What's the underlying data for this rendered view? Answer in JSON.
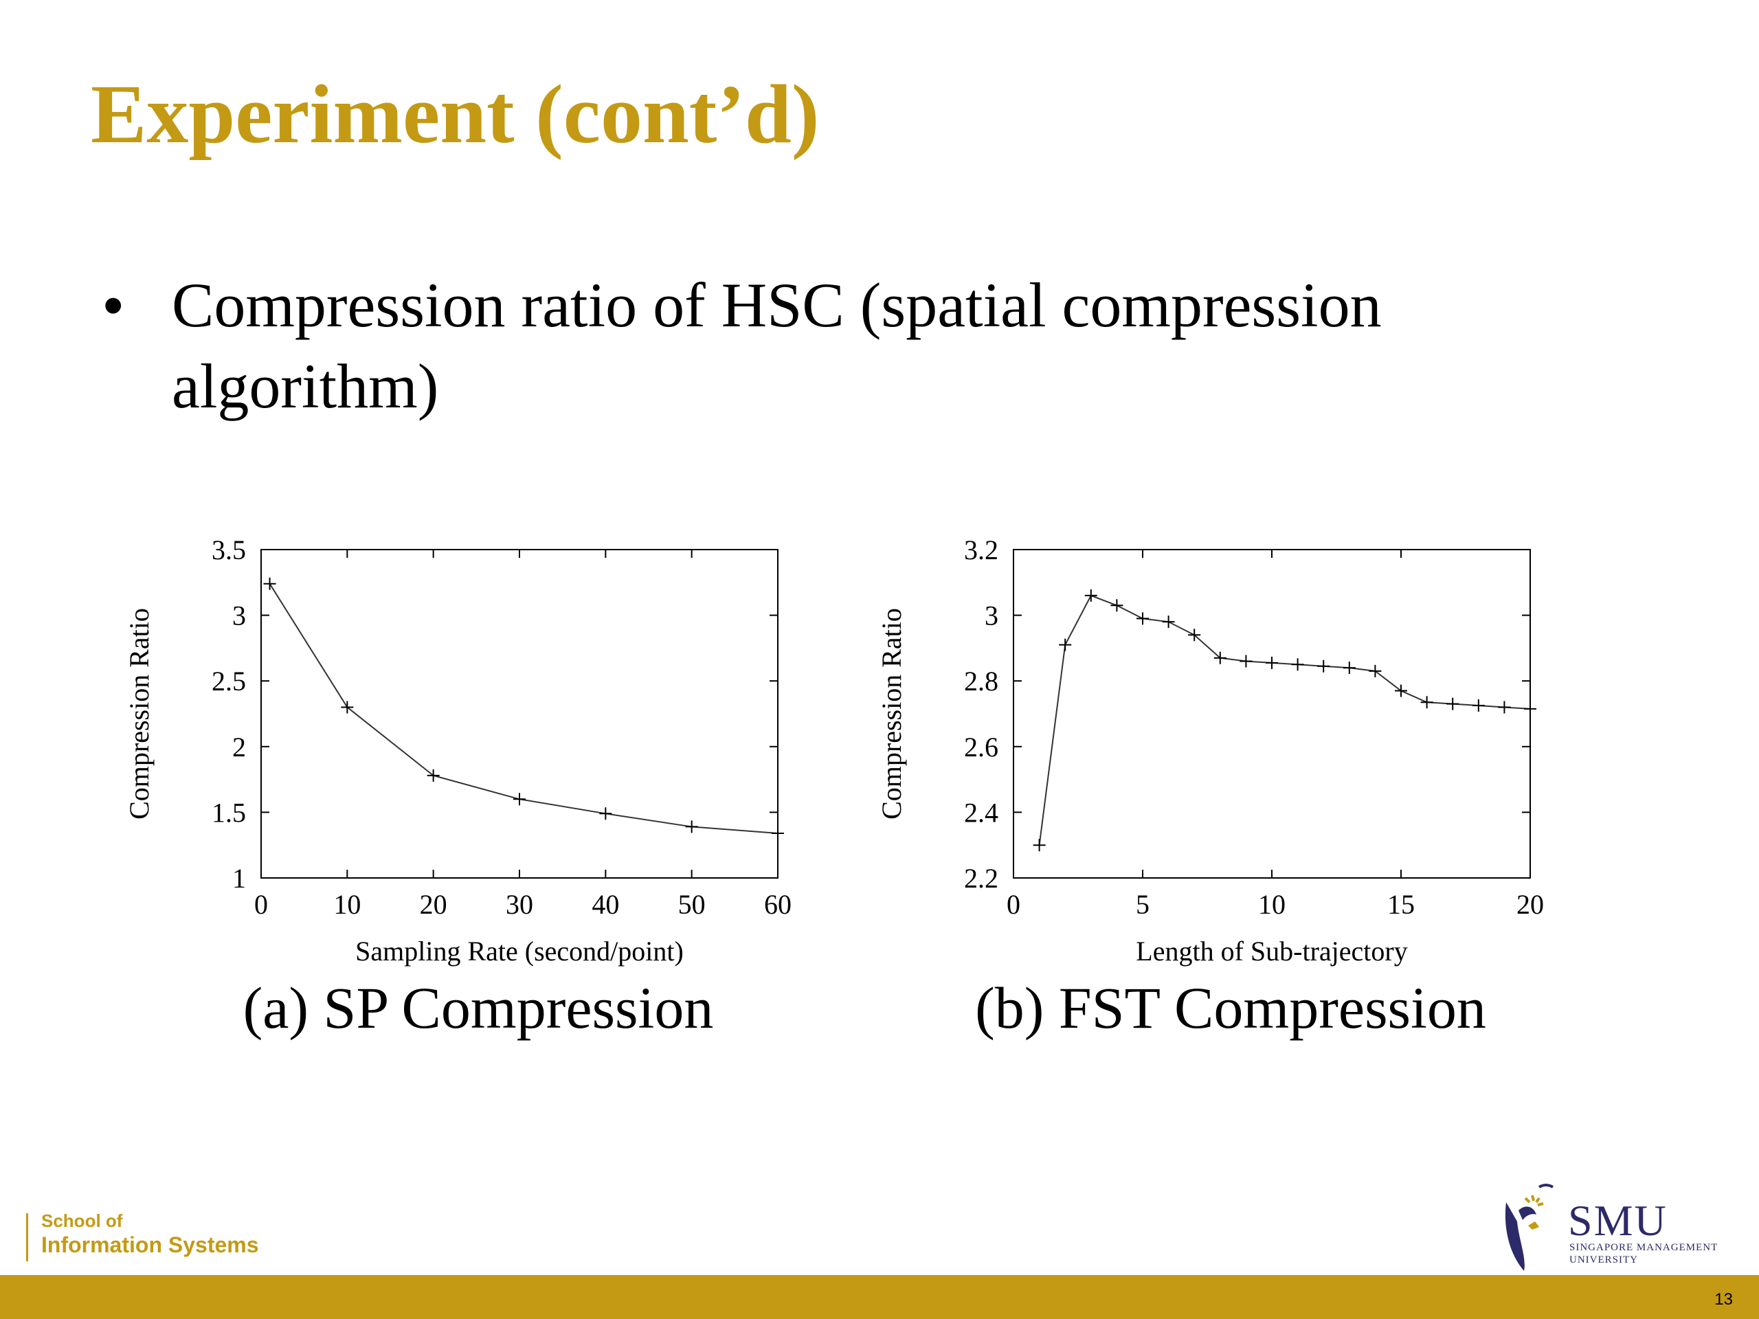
{
  "slide": {
    "title": "Experiment (cont’d)",
    "bullet": "Compression ratio of HSC (spatial compression algorithm)",
    "page_number": "13"
  },
  "footer": {
    "school_line1": "School of",
    "school_line2": "Information Systems",
    "logo_name": "SMU",
    "logo_sub1": "SINGAPORE MANAGEMENT",
    "logo_sub2": "UNIVERSITY"
  },
  "colors": {
    "title_gold": "#c49a14",
    "band_gold": "#c49a14",
    "logo_navy": "#2d2a6a"
  },
  "chart_data": [
    {
      "type": "line",
      "caption": "(a) SP Compression",
      "xlabel": "Sampling Rate (second/point)",
      "ylabel": "Compression Ratio",
      "xlim": [
        0,
        60
      ],
      "ylim": [
        1,
        3.5
      ],
      "xticks": [
        0,
        10,
        20,
        30,
        40,
        50,
        60
      ],
      "xtick_labels": [
        "0",
        "10",
        "20",
        "30",
        "40",
        "50",
        "60"
      ],
      "yticks": [
        1,
        1.5,
        2,
        2.5,
        3,
        3.5
      ],
      "ytick_labels": [
        "1",
        "1.5",
        "2",
        "2.5",
        "3",
        "3.5"
      ],
      "marker": "+",
      "grid": false,
      "series": [
        {
          "x": [
            1,
            10,
            20,
            30,
            40,
            50,
            60
          ],
          "y": [
            3.24,
            2.3,
            1.78,
            1.6,
            1.49,
            1.39,
            1.34
          ]
        }
      ]
    },
    {
      "type": "line",
      "caption": "(b) FST Compression",
      "xlabel": "Length of Sub-trajectory",
      "ylabel": "Compression Ratio",
      "xlim": [
        0,
        20
      ],
      "ylim": [
        2.2,
        3.2
      ],
      "xticks": [
        0,
        5,
        10,
        15,
        20
      ],
      "xtick_labels": [
        "0",
        "5",
        "10",
        "15",
        "20"
      ],
      "yticks": [
        2.2,
        2.4,
        2.6,
        2.8,
        3.0,
        3.2
      ],
      "ytick_labels": [
        "2.2",
        "2.4",
        "2.6",
        "2.8",
        "3",
        "3.2"
      ],
      "marker": "+",
      "grid": false,
      "series": [
        {
          "x": [
            1,
            2,
            3,
            4,
            5,
            6,
            7,
            8,
            9,
            10,
            11,
            12,
            13,
            14,
            15,
            16,
            17,
            18,
            19,
            20
          ],
          "y": [
            2.3,
            2.91,
            3.06,
            3.03,
            2.99,
            2.98,
            2.94,
            2.87,
            2.86,
            2.855,
            2.85,
            2.845,
            2.84,
            2.83,
            2.77,
            2.735,
            2.73,
            2.725,
            2.72,
            2.715
          ]
        }
      ]
    }
  ]
}
